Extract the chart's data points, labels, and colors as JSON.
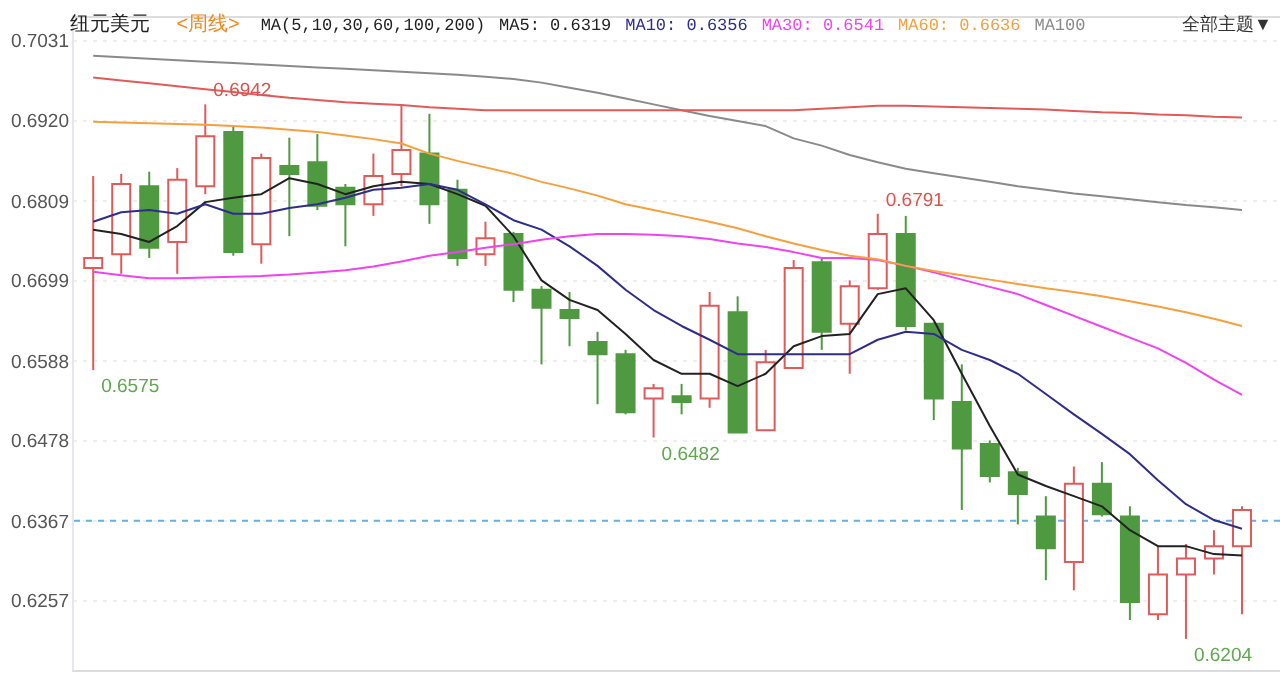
{
  "chart_data": {
    "type": "candlestick",
    "title": "纽元美元",
    "subtitle": "<周线>",
    "categories": [
      null,
      null,
      null,
      null,
      null,
      null,
      null,
      null,
      null,
      null,
      null,
      null,
      null,
      null,
      null,
      null,
      null,
      null,
      null,
      null,
      null,
      null,
      null,
      null,
      null,
      null,
      null,
      null,
      null,
      null,
      null,
      null,
      null,
      null,
      null,
      null,
      null,
      null,
      null,
      null,
      null,
      null
    ],
    "ohlc": [
      [
        0.6716,
        0.6843,
        0.6575,
        0.673
      ],
      [
        0.6735,
        0.6846,
        0.6708,
        0.6832
      ],
      [
        0.6829,
        0.6849,
        0.673,
        0.6744
      ],
      [
        0.6752,
        0.6854,
        0.6708,
        0.6838
      ],
      [
        0.6829,
        0.6942,
        0.6818,
        0.6898
      ],
      [
        0.6904,
        0.6912,
        0.6733,
        0.6738
      ],
      [
        0.6749,
        0.6874,
        0.6722,
        0.6868
      ],
      [
        0.6857,
        0.6896,
        0.676,
        0.6846
      ],
      [
        0.6862,
        0.6901,
        0.6796,
        0.6802
      ],
      [
        0.6827,
        0.6832,
        0.6746,
        0.6804
      ],
      [
        0.6804,
        0.6874,
        0.6788,
        0.6843
      ],
      [
        0.6846,
        0.694,
        0.6829,
        0.6879
      ],
      [
        0.6874,
        0.6929,
        0.6777,
        0.6804
      ],
      [
        0.6824,
        0.6838,
        0.6719,
        0.673
      ],
      [
        0.6735,
        0.678,
        0.6719,
        0.6757
      ],
      [
        0.6763,
        0.6766,
        0.6669,
        0.6686
      ],
      [
        0.6686,
        0.6691,
        0.6583,
        0.6661
      ],
      [
        0.6658,
        0.6683,
        0.6608,
        0.6647
      ],
      [
        0.6614,
        0.6628,
        0.6528,
        0.6597
      ],
      [
        0.6597,
        0.6603,
        0.6514,
        0.6517
      ],
      [
        0.6536,
        0.6556,
        0.6482,
        0.655
      ],
      [
        0.6539,
        0.6556,
        0.6514,
        0.6531
      ],
      [
        0.6536,
        0.6683,
        0.6523,
        0.6664
      ],
      [
        0.6655,
        0.6677,
        0.6489,
        0.6489
      ],
      [
        0.6492,
        0.6603,
        0.6492,
        0.6586
      ],
      [
        0.6578,
        0.6727,
        0.6578,
        0.6716
      ],
      [
        0.6724,
        0.673,
        0.6603,
        0.6628
      ],
      [
        0.6639,
        0.6699,
        0.657,
        0.6691
      ],
      [
        0.6688,
        0.6791,
        0.6686,
        0.6763
      ],
      [
        0.6763,
        0.6788,
        0.663,
        0.6636
      ],
      [
        0.6639,
        0.6641,
        0.6506,
        0.6536
      ],
      [
        0.6531,
        0.6583,
        0.6382,
        0.6467
      ],
      [
        0.6473,
        0.6478,
        0.642,
        0.6429
      ],
      [
        0.6434,
        0.644,
        0.6362,
        0.6404
      ],
      [
        0.6373,
        0.6401,
        0.6285,
        0.6329
      ],
      [
        0.631,
        0.6442,
        0.6271,
        0.6418
      ],
      [
        0.6418,
        0.6448,
        0.6373,
        0.6376
      ],
      [
        0.6373,
        0.6387,
        0.623,
        0.6255
      ],
      [
        0.6238,
        0.6332,
        0.623,
        0.6293
      ],
      [
        0.6293,
        0.6335,
        0.6204,
        0.6315
      ],
      [
        0.6315,
        0.6354,
        0.6293,
        0.6332
      ],
      [
        0.6332,
        0.6387,
        0.6238,
        0.6382
      ]
    ],
    "colors": [
      "#e05a5a",
      "#e05a5a",
      "#4f9a41",
      "#e05a5a",
      "#e05a5a",
      "#4f9a41",
      "#e05a5a",
      "#4f9a41",
      "#4f9a41",
      "#4f9a41",
      "#e05a5a",
      "#e05a5a",
      "#4f9a41",
      "#4f9a41",
      "#e05a5a",
      "#4f9a41",
      "#4f9a41",
      "#4f9a41",
      "#4f9a41",
      "#4f9a41",
      "#e05a5a",
      "#4f9a41",
      "#e05a5a",
      "#4f9a41",
      "#e05a5a",
      "#e05a5a",
      "#4f9a41",
      "#e05a5a",
      "#e05a5a",
      "#4f9a41",
      "#4f9a41",
      "#4f9a41",
      "#4f9a41",
      "#4f9a41",
      "#4f9a41",
      "#e05a5a",
      "#4f9a41",
      "#4f9a41",
      "#e05a5a",
      "#e05a5a",
      "#e05a5a",
      "#e05a5a"
    ],
    "series": [
      {
        "name": "MA5: 0.6319",
        "type": "line",
        "color": "#222222",
        "values": [
          0.6769,
          0.6763,
          0.6752,
          0.6774,
          0.6807,
          0.6813,
          0.6818,
          0.684,
          0.6832,
          0.6818,
          0.6829,
          0.6835,
          0.6832,
          0.6818,
          0.6802,
          0.676,
          0.6699,
          0.6672,
          0.6658,
          0.6625,
          0.6589,
          0.657,
          0.657,
          0.6553,
          0.657,
          0.6608,
          0.6622,
          0.6625,
          0.668,
          0.6688,
          0.6644,
          0.657,
          0.6498,
          0.6431,
          0.6415,
          0.6401,
          0.6387,
          0.6354,
          0.6332,
          0.6332,
          0.6321,
          0.6319
        ]
      },
      {
        "name": "MA10: 0.6356",
        "type": "line",
        "color": "#2e2e8a",
        "values": [
          0.678,
          0.6793,
          0.6796,
          0.6791,
          0.6804,
          0.6791,
          0.6791,
          0.6799,
          0.6804,
          0.6813,
          0.6824,
          0.6827,
          0.6832,
          0.6824,
          0.6804,
          0.6782,
          0.6769,
          0.6746,
          0.6719,
          0.6686,
          0.6658,
          0.6636,
          0.6617,
          0.6597,
          0.6597,
          0.6597,
          0.6597,
          0.6597,
          0.6617,
          0.6628,
          0.6625,
          0.6603,
          0.6589,
          0.657,
          0.6542,
          0.6514,
          0.6487,
          0.6459,
          0.6423,
          0.639,
          0.6368,
          0.6356
        ]
      },
      {
        "name": "MA30: 0.6541",
        "type": "line",
        "color": "#ee44ee",
        "values": [
          0.6711,
          0.6706,
          0.6702,
          0.6702,
          0.6703,
          0.6704,
          0.6705,
          0.6707,
          0.671,
          0.6713,
          0.6718,
          0.6725,
          0.6733,
          0.6738,
          0.6744,
          0.6749,
          0.6755,
          0.676,
          0.6763,
          0.6763,
          0.6762,
          0.676,
          0.6756,
          0.675,
          0.6745,
          0.6738,
          0.673,
          0.673,
          0.6727,
          0.6719,
          0.671,
          0.67,
          0.669,
          0.668,
          0.6665,
          0.665,
          0.6635,
          0.662,
          0.6605,
          0.6585,
          0.6562,
          0.6541
        ]
      },
      {
        "name": "MA60: 0.6636",
        "type": "line",
        "color": "#f5a040",
        "values": [
          0.6918,
          0.6917,
          0.6916,
          0.6915,
          0.6914,
          0.6912,
          0.691,
          0.6907,
          0.6904,
          0.6899,
          0.6894,
          0.6888,
          0.6874,
          0.6864,
          0.6855,
          0.6846,
          0.6835,
          0.6826,
          0.6816,
          0.6804,
          0.6796,
          0.6788,
          0.678,
          0.6771,
          0.676,
          0.675,
          0.6741,
          0.6733,
          0.6728,
          0.6719,
          0.6712,
          0.6706,
          0.67,
          0.6694,
          0.6688,
          0.6683,
          0.6677,
          0.667,
          0.6663,
          0.6655,
          0.6646,
          0.6636
        ]
      },
      {
        "name": "MA100",
        "type": "line",
        "color": "#8a8a8a",
        "values": [
          0.7009,
          0.7007,
          0.7005,
          0.7003,
          0.7001,
          0.6999,
          0.6997,
          0.6995,
          0.6993,
          0.6991,
          0.6989,
          0.6987,
          0.6985,
          0.6983,
          0.698,
          0.6977,
          0.6972,
          0.6965,
          0.6958,
          0.695,
          0.6942,
          0.6934,
          0.6926,
          0.6919,
          0.6912,
          0.6895,
          0.6885,
          0.6872,
          0.6862,
          0.6853,
          0.6847,
          0.6841,
          0.6835,
          0.6829,
          0.6824,
          0.6819,
          0.6815,
          0.6811,
          0.6807,
          0.6803,
          0.68,
          0.6796
        ]
      },
      {
        "type": "line",
        "color": "#e05a5a",
        "values": [
          0.6979,
          0.6975,
          0.6971,
          0.6967,
          0.6963,
          0.6959,
          0.6955,
          0.6951,
          0.6948,
          0.6945,
          0.6943,
          0.6941,
          0.6938,
          0.6936,
          0.6934,
          0.6934,
          0.6934,
          0.6934,
          0.6934,
          0.6934,
          0.6934,
          0.6934,
          0.6934,
          0.6934,
          0.6934,
          0.6934,
          0.6936,
          0.6938,
          0.694,
          0.694,
          0.6939,
          0.6938,
          0.6937,
          0.6936,
          0.6935,
          0.6933,
          0.6931,
          0.693,
          0.6928,
          0.6927,
          0.6925,
          0.6924
        ]
      }
    ],
    "ylim": [
      0.6161,
      0.7064
    ],
    "yticks": [
      0.7031,
      {
        "value": 0.692,
        "label": "0.6920"
      },
      0.6809,
      0.6699,
      0.6588,
      0.6478,
      0.6367,
      0.6257
    ],
    "tick_labels": "y",
    "grid": "y",
    "legend": "top right",
    "ref_lines": [
      {
        "axis": "y",
        "value": 0.6367,
        "color": "#6aaee0",
        "line_style": "dashed"
      }
    ],
    "annotations": [
      "MA(5,10,30,60,100,200)",
      "全部主题▼",
      "0.6942",
      "0.6575",
      "0.6482",
      "0.6791",
      "0.6204"
    ]
  }
}
